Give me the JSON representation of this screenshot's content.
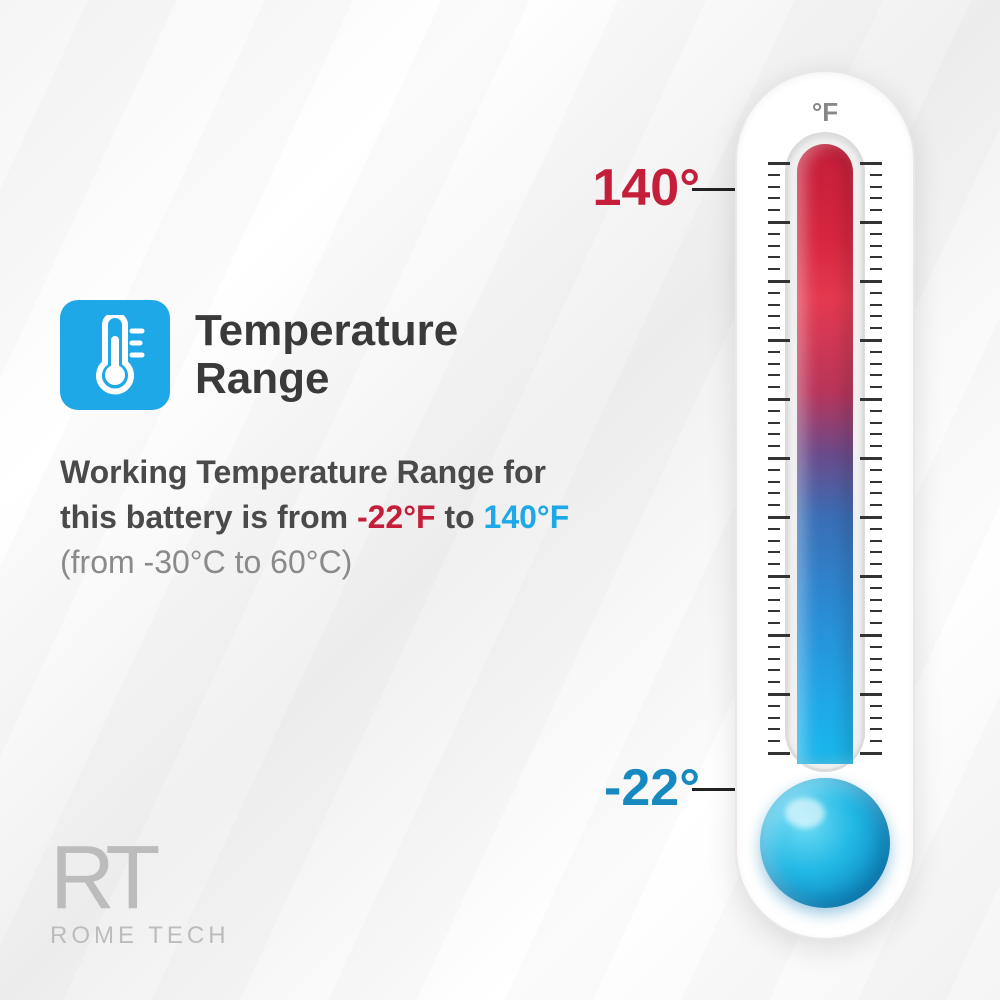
{
  "title": "Temperature Range",
  "icon": {
    "bg_color": "#1ea8e8"
  },
  "description": {
    "prefix": "Working Temperature Range for this battery is from ",
    "cold_f": "-22°F",
    "mid": " to ",
    "hot_f": "140°F",
    "celsius": "(from -30°C to 60°C)"
  },
  "colors": {
    "hot": "#c41e3a",
    "cold": "#1ea8e8",
    "text": "#4a4a4a",
    "muted": "#8a8a8a"
  },
  "thermometer": {
    "unit": "°F",
    "high_label": "140°",
    "low_label": "-22°",
    "high_color": "#c41e3a",
    "low_color": "#1589c0",
    "tick_count": 50,
    "major_every": 5
  },
  "logo": {
    "mark": "RT",
    "name": "ROME TECH"
  }
}
